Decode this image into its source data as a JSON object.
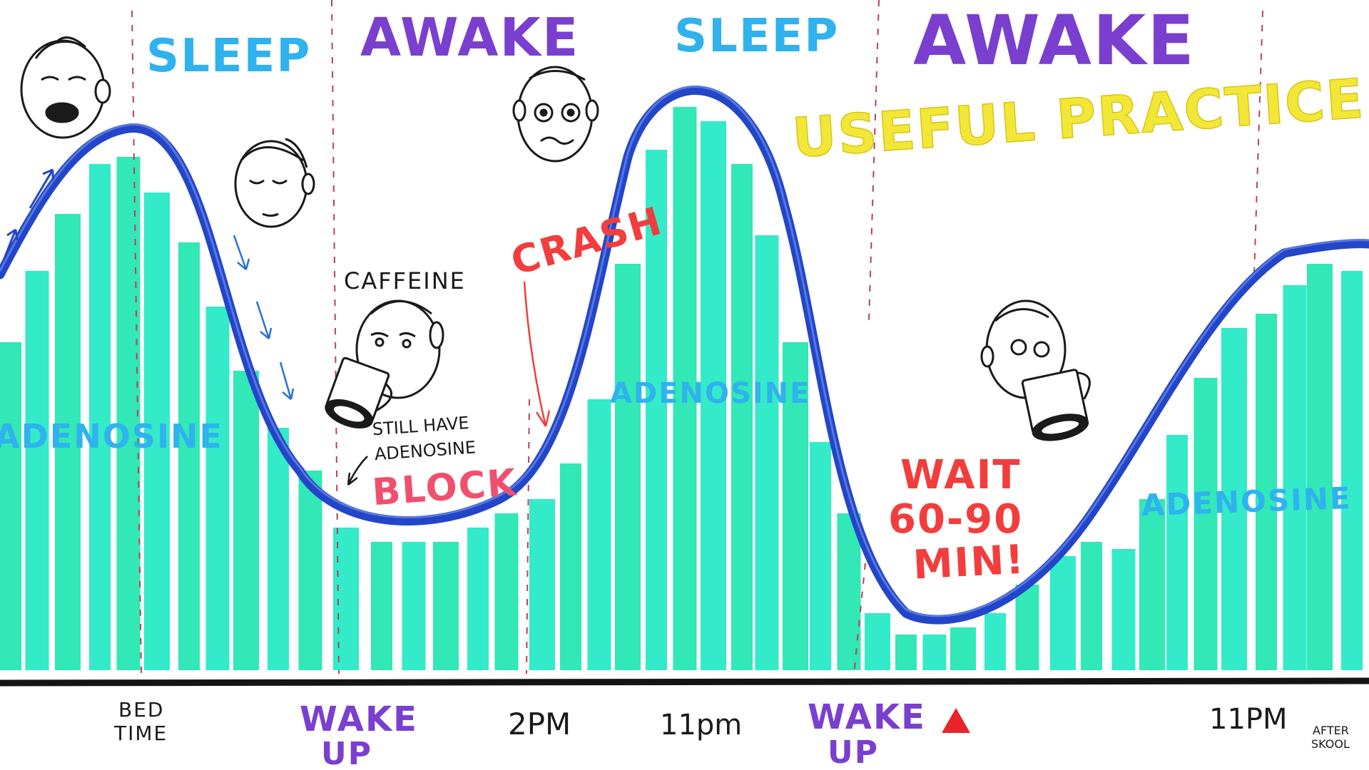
{
  "phases": [
    {
      "id": "sleep-1",
      "label": "SLEEP",
      "color": "#2fb2ee"
    },
    {
      "id": "awake-1",
      "label": "AWAKE",
      "color": "#7a3fcf"
    },
    {
      "id": "sleep-2",
      "label": "SLEEP",
      "color": "#2fb2ee"
    },
    {
      "id": "awake-2",
      "label": "AWAKE",
      "color": "#7a3fcf"
    }
  ],
  "heading": {
    "text": "USEFUL PRACTICE",
    "color": "#f2e636"
  },
  "adenosine_label": "ADENOSINE",
  "adenosine_color": "#2fb2ee",
  "bar_colors": [
    "#1fe6b0",
    "#22e8c4"
  ],
  "curve_color": "#2346c9",
  "annotations": {
    "caffeine": "CAFFEINE",
    "still_have": [
      "STILL HAVE",
      "ADENOSINE"
    ],
    "block": "BLOCK",
    "crash": "CRASH",
    "wait": [
      "WAIT",
      "60-90",
      "MIN!"
    ],
    "pink": "#f0506e",
    "red": "#f23d3d"
  },
  "timeline": {
    "bed_time": [
      "BED",
      "TIME"
    ],
    "wake_up": [
      "WAKE",
      "UP"
    ],
    "two_pm": "2PM",
    "eleven_pm": "11pm",
    "eleven_pm_2": "11PM",
    "marker_color": "#e8232a"
  },
  "logo": [
    "AFTER",
    "SKOOL"
  ],
  "icons": [
    "face-icon",
    "mug-icon",
    "arrow-icon",
    "triangle-marker-icon"
  ]
}
